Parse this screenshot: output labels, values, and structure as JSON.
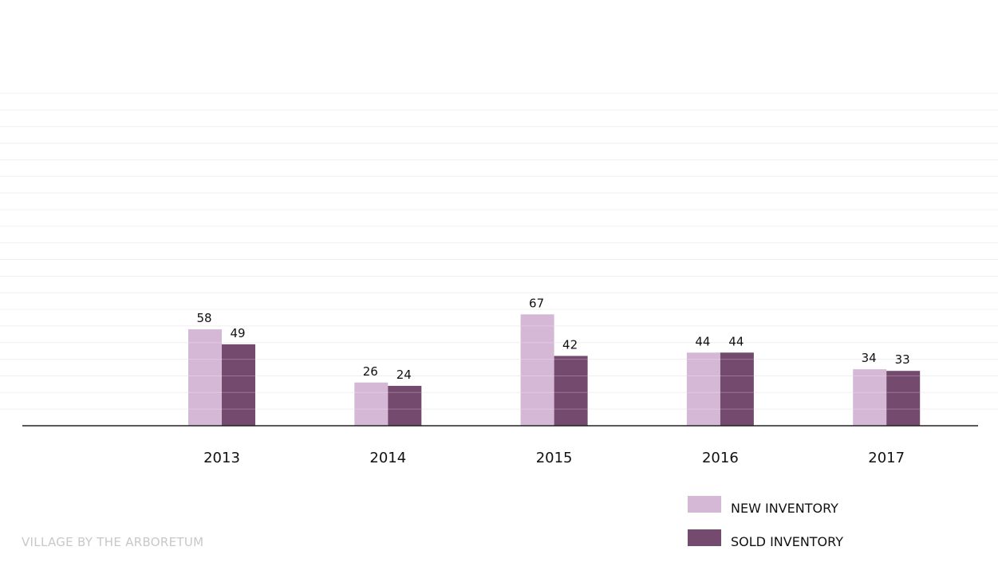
{
  "chart_data": {
    "type": "bar",
    "categories": [
      "2013",
      "2014",
      "2015",
      "2016",
      "2017"
    ],
    "series": [
      {
        "name": "NEW INVENTORY",
        "color": "#d5b8d6",
        "values": [
          58,
          26,
          67,
          44,
          34
        ]
      },
      {
        "name": "SOLD INVENTORY",
        "color": "#754a6f",
        "values": [
          49,
          24,
          42,
          44,
          33
        ]
      }
    ],
    "ylim": [
      0,
      200
    ],
    "grid": true,
    "legend": "bottom-right",
    "show_data_labels": true
  },
  "footer": {
    "text": "VILLAGE BY THE ARBORETUM"
  }
}
